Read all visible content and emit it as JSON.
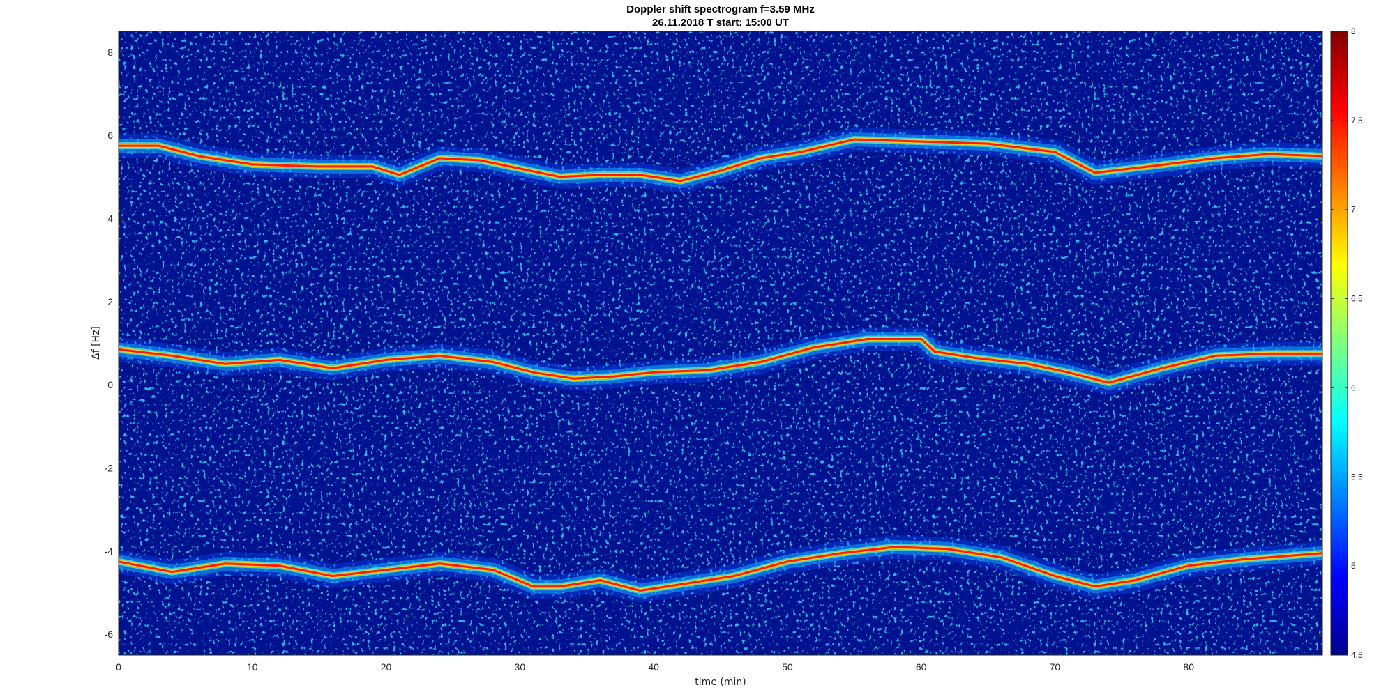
{
  "chart_data": {
    "type": "heatmap",
    "title": "Doppler shift spectrogram f=3.59 MHz",
    "subtitle": "26.11.2018   T start: 15:00 UT",
    "xlabel": "time (min)",
    "ylabel": "Δf [Hz]",
    "xlim": [
      0,
      90
    ],
    "ylim": [
      -6.5,
      8.5
    ],
    "xticks": [
      "0",
      "10",
      "20",
      "30",
      "40",
      "50",
      "60",
      "70",
      "80"
    ],
    "yticks": [
      "-6",
      "-4",
      "-2",
      "0",
      "2",
      "4",
      "6",
      "8"
    ],
    "colorbar": {
      "range": [
        4.5,
        8
      ],
      "ticks": [
        "4.5",
        "5",
        "5.5",
        "6",
        "6.5",
        "7",
        "7.5",
        "8"
      ],
      "colormap": "jet"
    },
    "series": [
      {
        "x": [
          0,
          3,
          6,
          10,
          15,
          19,
          21,
          24,
          27,
          30,
          33,
          36,
          39,
          42,
          45,
          48,
          51,
          55,
          60,
          65,
          70,
          73,
          77,
          82,
          86,
          90
        ],
        "y": [
          5.75,
          5.75,
          5.5,
          5.3,
          5.25,
          5.25,
          5.05,
          5.45,
          5.4,
          5.2,
          5.0,
          5.05,
          5.05,
          4.9,
          5.15,
          5.45,
          5.6,
          5.9,
          5.85,
          5.8,
          5.6,
          5.1,
          5.25,
          5.45,
          5.55,
          5.5
        ]
      },
      {
        "x": [
          0,
          4,
          8,
          12,
          16,
          20,
          24,
          28,
          31,
          34,
          37,
          40,
          44,
          48,
          52,
          56,
          60,
          61,
          64,
          68,
          71,
          74,
          78,
          82,
          86,
          90
        ],
        "y": [
          0.85,
          0.7,
          0.5,
          0.6,
          0.4,
          0.6,
          0.7,
          0.55,
          0.3,
          0.15,
          0.2,
          0.3,
          0.35,
          0.55,
          0.9,
          1.1,
          1.1,
          0.8,
          0.65,
          0.5,
          0.3,
          0.05,
          0.4,
          0.7,
          0.75,
          0.75
        ]
      },
      {
        "x": [
          0,
          4,
          8,
          12,
          16,
          20,
          24,
          28,
          31,
          33,
          36,
          39,
          42,
          46,
          50,
          54,
          58,
          62,
          66,
          70,
          73,
          76,
          80,
          84,
          88,
          90
        ],
        "y": [
          -4.25,
          -4.5,
          -4.3,
          -4.35,
          -4.6,
          -4.45,
          -4.3,
          -4.45,
          -4.85,
          -4.85,
          -4.7,
          -4.95,
          -4.8,
          -4.6,
          -4.25,
          -4.05,
          -3.9,
          -3.95,
          -4.15,
          -4.6,
          -4.85,
          -4.7,
          -4.35,
          -4.2,
          -4.1,
          -4.05
        ]
      }
    ]
  }
}
